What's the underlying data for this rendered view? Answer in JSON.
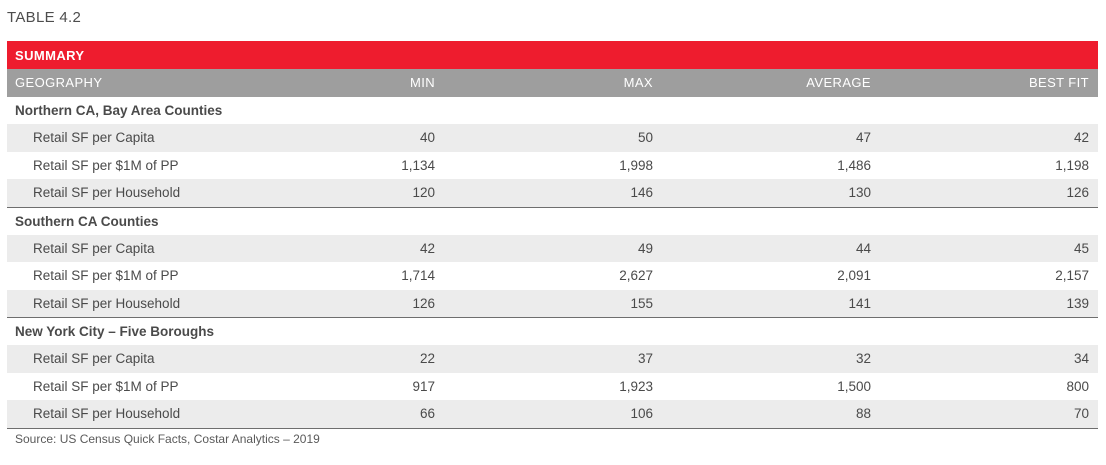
{
  "table_label": "TABLE 4.2",
  "banner_title": "SUMMARY",
  "columns": {
    "geography": "GEOGRAPHY",
    "min": "MIN",
    "max": "MAX",
    "average": "AVERAGE",
    "best_fit": "BEST FIT"
  },
  "groups": [
    {
      "title": "Northern CA, Bay Area Counties",
      "rows": [
        {
          "metric": "Retail SF per Capita",
          "min": "40",
          "max": "50",
          "average": "47",
          "best_fit": "42"
        },
        {
          "metric": "Retail SF per $1M of PP",
          "min": "1,134",
          "max": "1,998",
          "average": "1,486",
          "best_fit": "1,198"
        },
        {
          "metric": "Retail SF per Household",
          "min": "120",
          "max": "146",
          "average": "130",
          "best_fit": "126"
        }
      ]
    },
    {
      "title": "Southern CA Counties",
      "rows": [
        {
          "metric": "Retail SF per Capita",
          "min": "42",
          "max": "49",
          "average": "44",
          "best_fit": "45"
        },
        {
          "metric": "Retail SF per $1M of PP",
          "min": "1,714",
          "max": "2,627",
          "average": "2,091",
          "best_fit": "2,157"
        },
        {
          "metric": "Retail SF per Household",
          "min": "126",
          "max": "155",
          "average": "141",
          "best_fit": "139"
        }
      ]
    },
    {
      "title": "New York City – Five Boroughs",
      "rows": [
        {
          "metric": "Retail SF per Capita",
          "min": "22",
          "max": "37",
          "average": "32",
          "best_fit": "34"
        },
        {
          "metric": "Retail SF per $1M of PP",
          "min": "917",
          "max": "1,923",
          "average": "1,500",
          "best_fit": "800"
        },
        {
          "metric": "Retail SF per Household",
          "min": "66",
          "max": "106",
          "average": "88",
          "best_fit": "70"
        }
      ]
    }
  ],
  "source": "Source: US Census Quick Facts, Costar Analytics – 2019",
  "colors": {
    "banner": "#ee1c2e",
    "header": "#9e9e9e",
    "row_shade": "#ececec"
  }
}
